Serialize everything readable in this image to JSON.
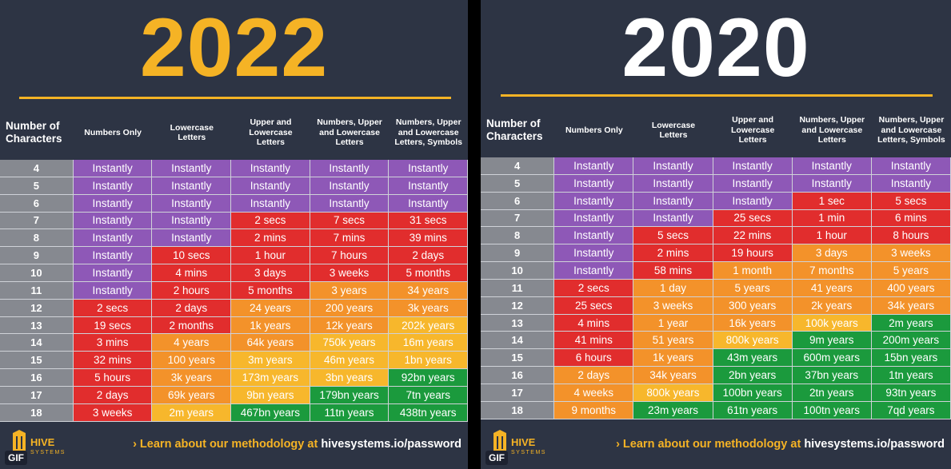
{
  "colors": {
    "purple": "#8e58b7",
    "red": "#e12d2d",
    "orange": "#f3922a",
    "yellow": "#f7b72c",
    "green": "#1b9a3d",
    "gray": "#868990",
    "accent": "#f5b325",
    "background": "#2d3444"
  },
  "panels": [
    {
      "year": "2022",
      "headers": [
        "Number of\nCharacters",
        "Numbers Only",
        "Lowercase\nLetters",
        "Upper and\nLowercase\nLetters",
        "Numbers, Upper\nand Lowercase\nLetters",
        "Numbers, Upper\nand Lowercase\nLetters, Symbols"
      ],
      "rows": [
        {
          "n": "4",
          "cells": [
            [
              "Instantly",
              "purple"
            ],
            [
              "Instantly",
              "purple"
            ],
            [
              "Instantly",
              "purple"
            ],
            [
              "Instantly",
              "purple"
            ],
            [
              "Instantly",
              "purple"
            ]
          ]
        },
        {
          "n": "5",
          "cells": [
            [
              "Instantly",
              "purple"
            ],
            [
              "Instantly",
              "purple"
            ],
            [
              "Instantly",
              "purple"
            ],
            [
              "Instantly",
              "purple"
            ],
            [
              "Instantly",
              "purple"
            ]
          ]
        },
        {
          "n": "6",
          "cells": [
            [
              "Instantly",
              "purple"
            ],
            [
              "Instantly",
              "purple"
            ],
            [
              "Instantly",
              "purple"
            ],
            [
              "Instantly",
              "purple"
            ],
            [
              "Instantly",
              "purple"
            ]
          ]
        },
        {
          "n": "7",
          "cells": [
            [
              "Instantly",
              "purple"
            ],
            [
              "Instantly",
              "purple"
            ],
            [
              "2 secs",
              "red"
            ],
            [
              "7 secs",
              "red"
            ],
            [
              "31 secs",
              "red"
            ]
          ]
        },
        {
          "n": "8",
          "cells": [
            [
              "Instantly",
              "purple"
            ],
            [
              "Instantly",
              "purple"
            ],
            [
              "2 mins",
              "red"
            ],
            [
              "7 mins",
              "red"
            ],
            [
              "39 mins",
              "red"
            ]
          ]
        },
        {
          "n": "9",
          "cells": [
            [
              "Instantly",
              "purple"
            ],
            [
              "10 secs",
              "red"
            ],
            [
              "1 hour",
              "red"
            ],
            [
              "7 hours",
              "red"
            ],
            [
              "2 days",
              "red"
            ]
          ]
        },
        {
          "n": "10",
          "cells": [
            [
              "Instantly",
              "purple"
            ],
            [
              "4 mins",
              "red"
            ],
            [
              "3 days",
              "red"
            ],
            [
              "3 weeks",
              "red"
            ],
            [
              "5 months",
              "red"
            ]
          ]
        },
        {
          "n": "11",
          "cells": [
            [
              "Instantly",
              "purple"
            ],
            [
              "2 hours",
              "red"
            ],
            [
              "5 months",
              "red"
            ],
            [
              "3 years",
              "orange"
            ],
            [
              "34 years",
              "orange"
            ]
          ]
        },
        {
          "n": "12",
          "cells": [
            [
              "2 secs",
              "red"
            ],
            [
              "2 days",
              "red"
            ],
            [
              "24 years",
              "orange"
            ],
            [
              "200 years",
              "orange"
            ],
            [
              "3k years",
              "orange"
            ]
          ]
        },
        {
          "n": "13",
          "cells": [
            [
              "19 secs",
              "red"
            ],
            [
              "2 months",
              "red"
            ],
            [
              "1k years",
              "orange"
            ],
            [
              "12k years",
              "orange"
            ],
            [
              "202k years",
              "yellow"
            ]
          ]
        },
        {
          "n": "14",
          "cells": [
            [
              "3 mins",
              "red"
            ],
            [
              "4 years",
              "orange"
            ],
            [
              "64k years",
              "orange"
            ],
            [
              "750k years",
              "yellow"
            ],
            [
              "16m years",
              "yellow"
            ]
          ]
        },
        {
          "n": "15",
          "cells": [
            [
              "32 mins",
              "red"
            ],
            [
              "100 years",
              "orange"
            ],
            [
              "3m years",
              "yellow"
            ],
            [
              "46m years",
              "yellow"
            ],
            [
              "1bn years",
              "yellow"
            ]
          ]
        },
        {
          "n": "16",
          "cells": [
            [
              "5 hours",
              "red"
            ],
            [
              "3k years",
              "orange"
            ],
            [
              "173m years",
              "yellow"
            ],
            [
              "3bn years",
              "yellow"
            ],
            [
              "92bn years",
              "green"
            ]
          ]
        },
        {
          "n": "17",
          "cells": [
            [
              "2 days",
              "red"
            ],
            [
              "69k years",
              "orange"
            ],
            [
              "9bn years",
              "yellow"
            ],
            [
              "179bn years",
              "green"
            ],
            [
              "7tn years",
              "green"
            ]
          ]
        },
        {
          "n": "18",
          "cells": [
            [
              "3 weeks",
              "red"
            ],
            [
              "2m years",
              "yellow"
            ],
            [
              "467bn years",
              "green"
            ],
            [
              "11tn years",
              "green"
            ],
            [
              "438tn years",
              "green"
            ]
          ]
        }
      ],
      "logo_text": "HIVE",
      "logo_sub": "SYSTEMS",
      "gif_badge": "GIF",
      "cta_prefix": "› Learn about our methodology at",
      "cta_link": "hivesystems.io/password"
    },
    {
      "year": "2020",
      "headers": [
        "Number of\nCharacters",
        "Numbers Only",
        "Lowercase\nLetters",
        "Upper and\nLowercase\nLetters",
        "Numbers, Upper\nand Lowercase\nLetters",
        "Numbers, Upper\nand Lowercase\nLetters, Symbols"
      ],
      "rows": [
        {
          "n": "4",
          "cells": [
            [
              "Instantly",
              "purple"
            ],
            [
              "Instantly",
              "purple"
            ],
            [
              "Instantly",
              "purple"
            ],
            [
              "Instantly",
              "purple"
            ],
            [
              "Instantly",
              "purple"
            ]
          ]
        },
        {
          "n": "5",
          "cells": [
            [
              "Instantly",
              "purple"
            ],
            [
              "Instantly",
              "purple"
            ],
            [
              "Instantly",
              "purple"
            ],
            [
              "Instantly",
              "purple"
            ],
            [
              "Instantly",
              "purple"
            ]
          ]
        },
        {
          "n": "6",
          "cells": [
            [
              "Instantly",
              "purple"
            ],
            [
              "Instantly",
              "purple"
            ],
            [
              "Instantly",
              "purple"
            ],
            [
              "1 sec",
              "red"
            ],
            [
              "5 secs",
              "red"
            ]
          ]
        },
        {
          "n": "7",
          "cells": [
            [
              "Instantly",
              "purple"
            ],
            [
              "Instantly",
              "purple"
            ],
            [
              "25 secs",
              "red"
            ],
            [
              "1 min",
              "red"
            ],
            [
              "6 mins",
              "red"
            ]
          ]
        },
        {
          "n": "8",
          "cells": [
            [
              "Instantly",
              "purple"
            ],
            [
              "5 secs",
              "red"
            ],
            [
              "22 mins",
              "red"
            ],
            [
              "1 hour",
              "red"
            ],
            [
              "8 hours",
              "red"
            ]
          ]
        },
        {
          "n": "9",
          "cells": [
            [
              "Instantly",
              "purple"
            ],
            [
              "2 mins",
              "red"
            ],
            [
              "19 hours",
              "red"
            ],
            [
              "3 days",
              "orange"
            ],
            [
              "3 weeks",
              "orange"
            ]
          ]
        },
        {
          "n": "10",
          "cells": [
            [
              "Instantly",
              "purple"
            ],
            [
              "58 mins",
              "red"
            ],
            [
              "1 month",
              "orange"
            ],
            [
              "7 months",
              "orange"
            ],
            [
              "5 years",
              "orange"
            ]
          ]
        },
        {
          "n": "11",
          "cells": [
            [
              "2 secs",
              "red"
            ],
            [
              "1 day",
              "orange"
            ],
            [
              "5 years",
              "orange"
            ],
            [
              "41 years",
              "orange"
            ],
            [
              "400 years",
              "orange"
            ]
          ]
        },
        {
          "n": "12",
          "cells": [
            [
              "25 secs",
              "red"
            ],
            [
              "3 weeks",
              "orange"
            ],
            [
              "300 years",
              "orange"
            ],
            [
              "2k years",
              "orange"
            ],
            [
              "34k years",
              "orange"
            ]
          ]
        },
        {
          "n": "13",
          "cells": [
            [
              "4 mins",
              "red"
            ],
            [
              "1 year",
              "orange"
            ],
            [
              "16k years",
              "orange"
            ],
            [
              "100k years",
              "yellow"
            ],
            [
              "2m years",
              "green"
            ]
          ]
        },
        {
          "n": "14",
          "cells": [
            [
              "41 mins",
              "red"
            ],
            [
              "51 years",
              "orange"
            ],
            [
              "800k years",
              "yellow"
            ],
            [
              "9m years",
              "green"
            ],
            [
              "200m years",
              "green"
            ]
          ]
        },
        {
          "n": "15",
          "cells": [
            [
              "6 hours",
              "red"
            ],
            [
              "1k years",
              "orange"
            ],
            [
              "43m years",
              "green"
            ],
            [
              "600m years",
              "green"
            ],
            [
              "15bn years",
              "green"
            ]
          ]
        },
        {
          "n": "16",
          "cells": [
            [
              "2 days",
              "orange"
            ],
            [
              "34k years",
              "orange"
            ],
            [
              "2bn years",
              "green"
            ],
            [
              "37bn years",
              "green"
            ],
            [
              "1tn years",
              "green"
            ]
          ]
        },
        {
          "n": "17",
          "cells": [
            [
              "4 weeks",
              "orange"
            ],
            [
              "800k years",
              "yellow"
            ],
            [
              "100bn years",
              "green"
            ],
            [
              "2tn years",
              "green"
            ],
            [
              "93tn years",
              "green"
            ]
          ]
        },
        {
          "n": "18",
          "cells": [
            [
              "9 months",
              "orange"
            ],
            [
              "23m years",
              "green"
            ],
            [
              "61tn years",
              "green"
            ],
            [
              "100tn years",
              "green"
            ],
            [
              "7qd years",
              "green"
            ]
          ]
        }
      ],
      "logo_text": "HIVE",
      "logo_sub": "SYSTEMS",
      "gif_badge": "GIF",
      "cta_prefix": "› Learn about our methodology at",
      "cta_link": "hivesystems.io/password"
    }
  ]
}
